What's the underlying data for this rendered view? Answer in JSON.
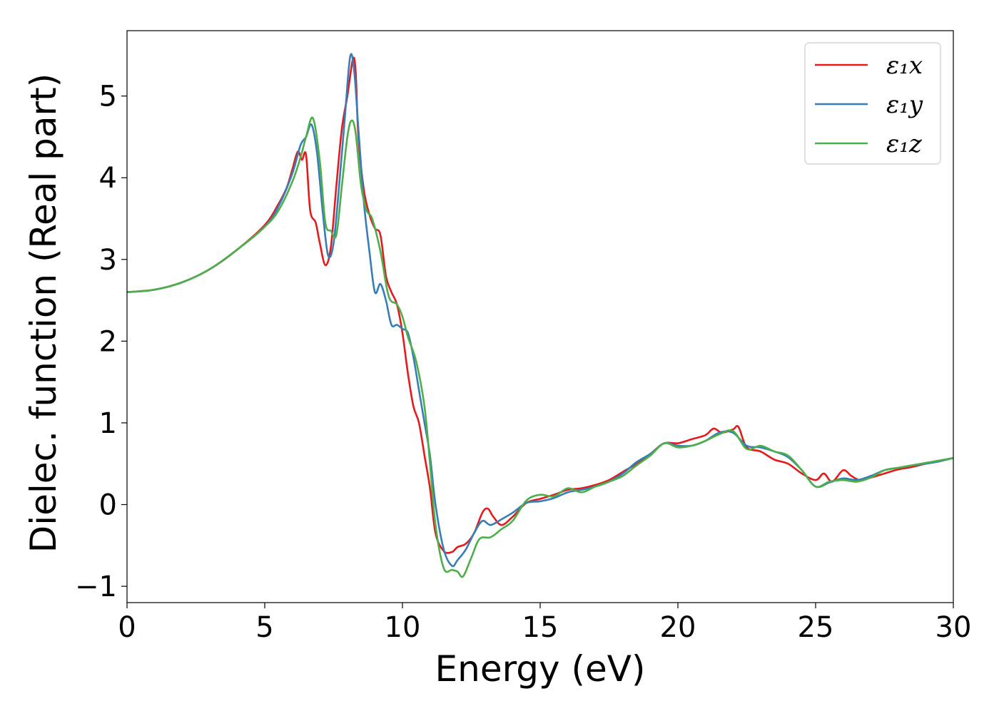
{
  "chart_data": {
    "type": "line",
    "title": "",
    "xlabel": "Energy (eV)",
    "ylabel": "Dielec. function (Real part)",
    "xlim": [
      0,
      30
    ],
    "ylim": [
      -1.2,
      5.8
    ],
    "xticks": [
      0,
      5,
      10,
      15,
      20,
      25,
      30
    ],
    "xtick_labels": [
      "0",
      "5",
      "10",
      "15",
      "20",
      "25",
      "30"
    ],
    "yticks": [
      -1,
      0,
      1,
      2,
      3,
      4,
      5
    ],
    "ytick_labels": [
      "−1",
      "0",
      "1",
      "2",
      "3",
      "4",
      "5"
    ],
    "grid": false,
    "legend_position": "top-right",
    "series": [
      {
        "name": "ε₁x",
        "color": "#e41a1c",
        "x": [
          0,
          1,
          2,
          3,
          4,
          5,
          5.5,
          5.8,
          6.0,
          6.2,
          6.35,
          6.5,
          6.65,
          6.85,
          7.0,
          7.2,
          7.4,
          7.6,
          7.8,
          8.0,
          8.2,
          8.3,
          8.4,
          8.6,
          8.8,
          9.0,
          9.2,
          9.4,
          9.6,
          9.8,
          10.0,
          10.2,
          10.4,
          10.6,
          10.8,
          11.0,
          11.2,
          11.5,
          11.8,
          12.0,
          12.3,
          12.6,
          12.9,
          13.1,
          13.3,
          13.6,
          14.0,
          14.5,
          15.0,
          15.5,
          16.0,
          16.5,
          17.0,
          17.5,
          18.0,
          18.5,
          19.0,
          19.5,
          20.0,
          20.5,
          21.0,
          21.3,
          21.6,
          22.0,
          22.2,
          22.5,
          23.0,
          23.5,
          24.0,
          24.5,
          25.0,
          25.3,
          25.6,
          26.0,
          26.3,
          26.6,
          27.0,
          27.5,
          28.0,
          28.5,
          29.0,
          29.5,
          30.0
        ],
        "y": [
          2.6,
          2.63,
          2.72,
          2.88,
          3.12,
          3.42,
          3.68,
          3.88,
          4.1,
          4.32,
          4.22,
          4.28,
          3.6,
          3.45,
          3.2,
          2.93,
          3.15,
          3.9,
          4.6,
          5.0,
          5.45,
          5.3,
          4.5,
          3.85,
          3.55,
          3.38,
          3.3,
          2.8,
          2.6,
          2.45,
          2.1,
          1.6,
          1.2,
          1.0,
          0.6,
          0.2,
          -0.35,
          -0.57,
          -0.58,
          -0.52,
          -0.48,
          -0.35,
          -0.1,
          -0.05,
          -0.15,
          -0.25,
          -0.15,
          0.02,
          0.07,
          0.12,
          0.18,
          0.2,
          0.24,
          0.3,
          0.4,
          0.5,
          0.62,
          0.75,
          0.75,
          0.8,
          0.85,
          0.93,
          0.88,
          0.92,
          0.95,
          0.7,
          0.65,
          0.55,
          0.5,
          0.38,
          0.3,
          0.38,
          0.28,
          0.42,
          0.35,
          0.3,
          0.33,
          0.38,
          0.43,
          0.46,
          0.5,
          0.53,
          0.57
        ]
      },
      {
        "name": "ε₁y",
        "color": "#377eb8",
        "x": [
          0,
          1,
          2,
          3,
          4,
          5,
          5.5,
          6.0,
          6.3,
          6.5,
          6.7,
          6.9,
          7.1,
          7.3,
          7.5,
          7.7,
          7.9,
          8.1,
          8.25,
          8.4,
          8.6,
          8.8,
          9.0,
          9.2,
          9.4,
          9.6,
          9.8,
          10.0,
          10.2,
          10.4,
          10.6,
          10.8,
          11.0,
          11.2,
          11.5,
          11.8,
          12.0,
          12.3,
          12.6,
          12.9,
          13.2,
          13.6,
          14.0,
          14.5,
          15.0,
          15.5,
          16.0,
          16.5,
          17.0,
          17.5,
          18.0,
          18.5,
          19.0,
          19.5,
          20.0,
          20.5,
          21.0,
          21.5,
          22.0,
          22.5,
          23.0,
          23.5,
          24.0,
          24.5,
          25.0,
          25.5,
          26.0,
          26.5,
          27.0,
          27.5,
          28.0,
          28.5,
          29.0,
          29.5,
          30.0
        ],
        "y": [
          2.6,
          2.63,
          2.72,
          2.88,
          3.12,
          3.4,
          3.65,
          4.05,
          4.4,
          4.5,
          4.65,
          4.3,
          3.6,
          3.05,
          3.2,
          3.9,
          4.7,
          5.48,
          5.3,
          4.6,
          3.7,
          3.1,
          2.6,
          2.7,
          2.5,
          2.2,
          2.2,
          2.15,
          2.1,
          1.8,
          1.4,
          1.0,
          0.6,
          0.0,
          -0.55,
          -0.75,
          -0.68,
          -0.55,
          -0.35,
          -0.2,
          -0.25,
          -0.18,
          -0.1,
          0.02,
          0.04,
          0.08,
          0.15,
          0.18,
          0.22,
          0.28,
          0.38,
          0.52,
          0.62,
          0.75,
          0.72,
          0.72,
          0.78,
          0.88,
          0.88,
          0.72,
          0.7,
          0.65,
          0.58,
          0.42,
          0.22,
          0.27,
          0.32,
          0.3,
          0.35,
          0.42,
          0.45,
          0.48,
          0.5,
          0.53,
          0.57
        ]
      },
      {
        "name": "ε₁z",
        "color": "#4daf4a",
        "x": [
          0,
          1,
          2,
          3,
          4,
          5,
          5.5,
          6.0,
          6.3,
          6.5,
          6.75,
          7.0,
          7.2,
          7.4,
          7.6,
          7.8,
          8.0,
          8.15,
          8.3,
          8.5,
          8.7,
          8.9,
          9.2,
          9.5,
          9.8,
          10.0,
          10.2,
          10.5,
          10.8,
          11.0,
          11.2,
          11.5,
          11.8,
          12.0,
          12.2,
          12.5,
          12.8,
          13.2,
          13.6,
          14.0,
          14.5,
          15.0,
          15.5,
          16.0,
          16.5,
          17.0,
          17.5,
          18.0,
          18.5,
          19.0,
          19.5,
          20.0,
          20.5,
          21.0,
          21.5,
          22.0,
          22.5,
          23.0,
          23.5,
          24.0,
          24.5,
          25.0,
          25.5,
          26.0,
          26.5,
          27.0,
          27.5,
          28.0,
          28.5,
          29.0,
          29.5,
          30.0
        ],
        "y": [
          2.6,
          2.63,
          2.72,
          2.88,
          3.12,
          3.4,
          3.6,
          3.95,
          4.25,
          4.5,
          4.73,
          4.2,
          3.45,
          3.35,
          3.3,
          3.9,
          4.5,
          4.7,
          4.55,
          3.9,
          3.6,
          3.5,
          3.1,
          2.55,
          2.45,
          2.3,
          2.05,
          1.75,
          1.2,
          0.5,
          -0.25,
          -0.78,
          -0.8,
          -0.82,
          -0.88,
          -0.65,
          -0.42,
          -0.4,
          -0.3,
          -0.2,
          0.05,
          0.12,
          0.1,
          0.2,
          0.15,
          0.22,
          0.28,
          0.35,
          0.48,
          0.6,
          0.75,
          0.7,
          0.72,
          0.78,
          0.86,
          0.9,
          0.68,
          0.72,
          0.65,
          0.6,
          0.42,
          0.22,
          0.28,
          0.3,
          0.28,
          0.33,
          0.42,
          0.45,
          0.48,
          0.51,
          0.54,
          0.57
        ]
      }
    ]
  }
}
